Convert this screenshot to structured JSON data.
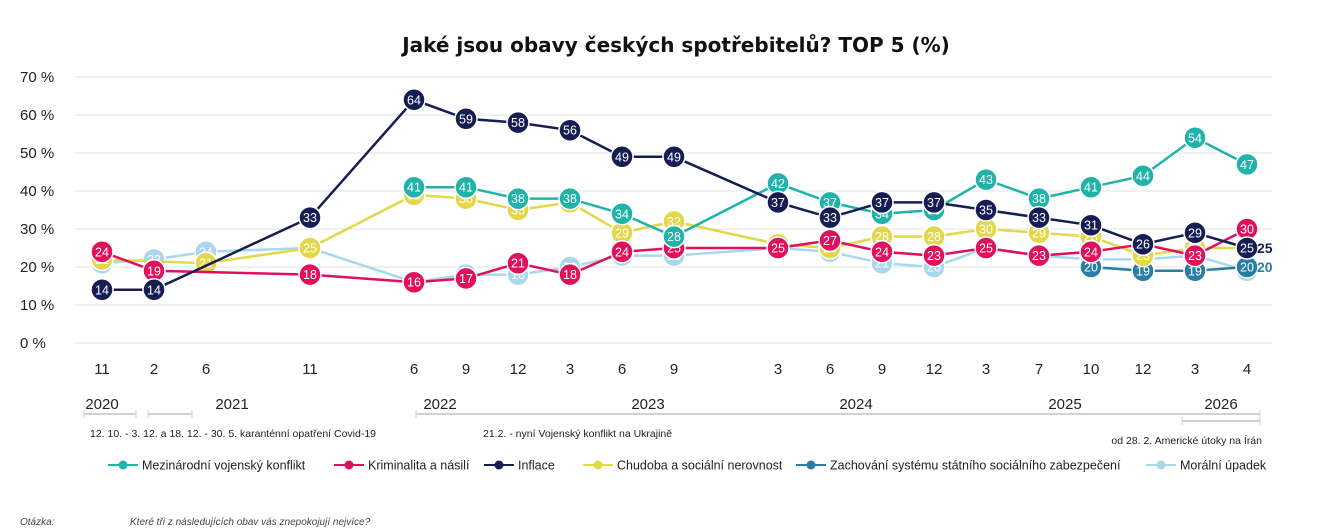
{
  "chart_data": {
    "type": "line",
    "title": "Jaké jsou obavy českých spotřebitelů? TOP 5 (%)",
    "ylim": [
      0,
      70
    ],
    "yticks": [
      "0 %",
      "10 %",
      "20 %",
      "30 %",
      "40 %",
      "50 %",
      "60 %",
      "70 %"
    ],
    "x_ticks": [
      "11",
      "2",
      "6",
      "11",
      "6",
      "9",
      "12",
      "3",
      "6",
      "9",
      "3",
      "6",
      "9",
      "12",
      "3",
      "7",
      "10",
      "12",
      "3",
      "4"
    ],
    "x_dates": [
      "2020-11",
      "2021-02",
      "2021-06",
      "2021-11",
      "2022-06",
      "2022-09",
      "2022-12",
      "2023-03",
      "2023-06",
      "2023-09",
      "2024-03",
      "2024-06",
      "2024-09",
      "2024-12",
      "2025-03",
      "2025-07",
      "2025-10",
      "2025-12",
      "2026-03",
      "2026-04"
    ],
    "years": [
      "2020",
      "2021",
      "2022",
      "2023",
      "2024",
      "2025",
      "2026"
    ],
    "grid": true,
    "legend_position": "bottom",
    "series": [
      {
        "name": "Mezinárodní vojenský konflikt",
        "color": "#1fb3aa",
        "points": [
          [
            "2022-06",
            41
          ],
          [
            "2022-09",
            41
          ],
          [
            "2022-12",
            38
          ],
          [
            "2023-03",
            38
          ],
          [
            "2023-06",
            34
          ],
          [
            "2023-09",
            28
          ],
          [
            "2024-03",
            42
          ],
          [
            "2024-06",
            37
          ],
          [
            "2024-09",
            34
          ],
          [
            "2024-12",
            35
          ],
          [
            "2025-03",
            43
          ],
          [
            "2025-07",
            38
          ],
          [
            "2025-10",
            41
          ],
          [
            "2025-12",
            44
          ],
          [
            "2026-03",
            54
          ],
          [
            "2026-04",
            47
          ]
        ]
      },
      {
        "name": "Kriminalita a násilí",
        "color": "#e0105c",
        "points": [
          [
            "2020-11",
            24
          ],
          [
            "2021-02",
            19
          ],
          [
            "2021-11",
            18
          ],
          [
            "2022-06",
            16
          ],
          [
            "2022-09",
            17
          ],
          [
            "2022-12",
            21
          ],
          [
            "2023-03",
            18
          ],
          [
            "2023-06",
            24
          ],
          [
            "2023-09",
            25
          ],
          [
            "2024-03",
            25
          ],
          [
            "2024-06",
            27
          ],
          [
            "2024-09",
            24
          ],
          [
            "2024-12",
            23
          ],
          [
            "2025-03",
            25
          ],
          [
            "2025-07",
            23
          ],
          [
            "2025-10",
            24
          ],
          [
            "2025-12",
            26
          ],
          [
            "2026-03",
            23
          ],
          [
            "2026-04",
            30
          ]
        ]
      },
      {
        "name": "Inflace",
        "color": "#161d52",
        "points": [
          [
            "2020-11",
            14
          ],
          [
            "2021-02",
            14
          ],
          [
            "2021-11",
            33
          ],
          [
            "2022-06",
            64
          ],
          [
            "2022-09",
            59
          ],
          [
            "2022-12",
            58
          ],
          [
            "2023-03",
            56
          ],
          [
            "2023-06",
            49
          ],
          [
            "2023-09",
            49
          ],
          [
            "2024-03",
            37
          ],
          [
            "2024-06",
            33
          ],
          [
            "2024-09",
            37
          ],
          [
            "2024-12",
            37
          ],
          [
            "2025-03",
            35
          ],
          [
            "2025-07",
            33
          ],
          [
            "2025-10",
            31
          ],
          [
            "2025-12",
            26
          ],
          [
            "2026-03",
            29
          ],
          [
            "2026-04",
            25
          ]
        ]
      },
      {
        "name": "Chudoba a sociální nerovnost",
        "color": "#e3d74a",
        "points": [
          [
            "2020-11",
            22
          ],
          [
            "2021-06",
            21
          ],
          [
            "2021-11",
            25
          ],
          [
            "2022-06",
            39
          ],
          [
            "2022-09",
            38
          ],
          [
            "2022-12",
            35
          ],
          [
            "2023-03",
            37
          ],
          [
            "2023-06",
            29
          ],
          [
            "2023-09",
            32
          ],
          [
            "2024-03",
            26
          ],
          [
            "2024-06",
            25
          ],
          [
            "2024-09",
            28
          ],
          [
            "2024-12",
            28
          ],
          [
            "2025-03",
            30
          ],
          [
            "2025-07",
            29
          ],
          [
            "2025-10",
            28
          ],
          [
            "2025-12",
            23
          ],
          [
            "2026-03",
            25
          ],
          [
            "2026-04",
            25
          ]
        ]
      },
      {
        "name": "Zachování systému státního sociálního zabezpečení",
        "color": "#2a7ea3",
        "points": [
          [
            "2025-10",
            20
          ],
          [
            "2025-12",
            19
          ],
          [
            "2026-03",
            19
          ],
          [
            "2026-04",
            20
          ]
        ]
      },
      {
        "name": "Morální úpadek",
        "color": "#a9d7ee",
        "points": [
          [
            "2020-11",
            21
          ],
          [
            "2021-02",
            22
          ],
          [
            "2021-06",
            24
          ],
          [
            "2021-11",
            25
          ],
          [
            "2022-06",
            16
          ],
          [
            "2022-09",
            18
          ],
          [
            "2022-12",
            18
          ],
          [
            "2023-03",
            20
          ],
          [
            "2023-06",
            23
          ],
          [
            "2023-09",
            23
          ],
          [
            "2024-03",
            25
          ],
          [
            "2024-06",
            24
          ],
          [
            "2024-09",
            21
          ],
          [
            "2024-12",
            20
          ],
          [
            "2025-03",
            25
          ],
          [
            "2025-07",
            23
          ],
          [
            "2025-10",
            22
          ],
          [
            "2025-12",
            22
          ],
          [
            "2026-03",
            23
          ],
          [
            "2026-04",
            19
          ]
        ]
      }
    ],
    "end_labels": [
      {
        "text": "25",
        "color": "#161d52",
        "value": 25
      },
      {
        "text": "20",
        "color": "#2a7ea3",
        "value": 20
      }
    ],
    "periods": [
      {
        "label": "12. 10. - 3. 12. a 18. 12. - 30. 5. karanténní opatření Covid-19",
        "start": "2020-10",
        "end": "2021-05"
      },
      {
        "label": "21.2. - nyní Vojenský konflikt na Ukrajině",
        "start": "2022-02",
        "end": "2026-04"
      },
      {
        "label": "od 28. 2. Americké útoky na Írán",
        "start": "2026-02",
        "end": "2026-04"
      }
    ]
  },
  "footer": {
    "label": "Otázka:",
    "question": "Které tři z následujících obav vás znepokojují nejvíce?"
  }
}
